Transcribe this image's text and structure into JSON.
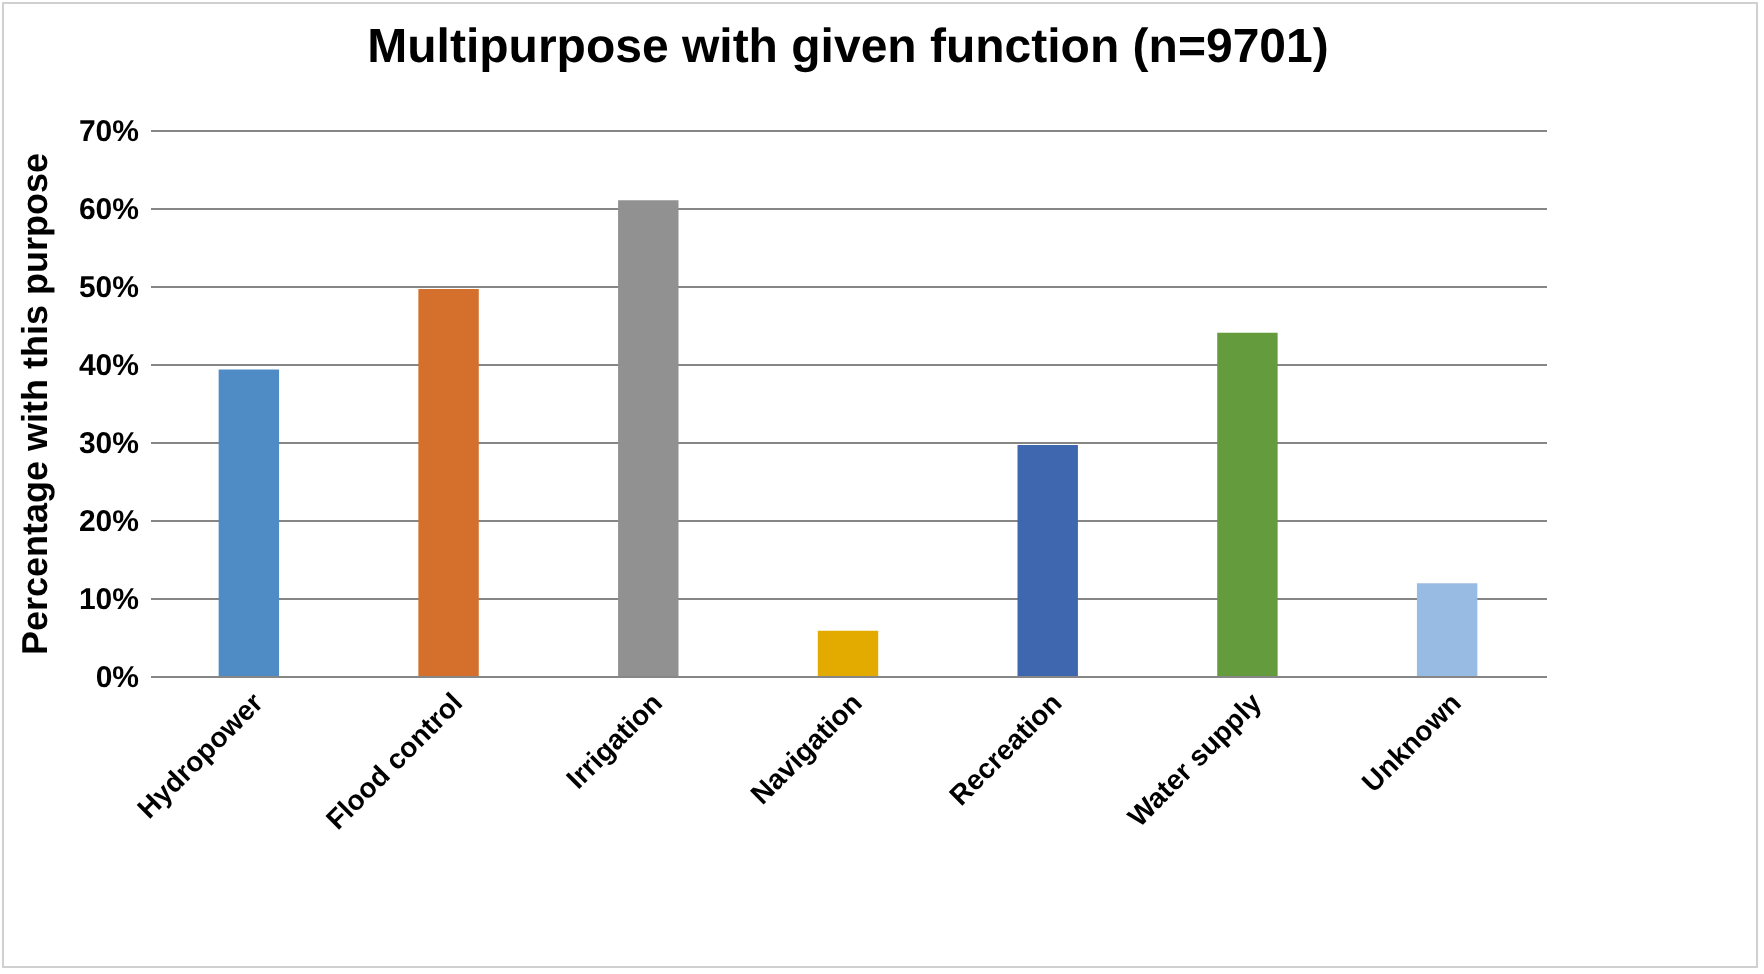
{
  "chart_data": {
    "type": "bar",
    "title": "Multipurpose with given function (n=9701)",
    "ylabel": "Percentage with this purpose",
    "categories": [
      "Hydropower",
      "Flood control",
      "Irrigation",
      "Navigation",
      "Recreation",
      "Water supply",
      "Unknown"
    ],
    "values": [
      39.3,
      49.6,
      61,
      5.8,
      29.6,
      44,
      11.9
    ],
    "colors": [
      "#4f8bc4",
      "#d4702b",
      "#919191",
      "#e3aa00",
      "#3e67b0",
      "#649b3d",
      "#98bbe3"
    ],
    "ylim": [
      0,
      70
    ],
    "yticks": [
      {
        "value": 0,
        "label": "0%"
      },
      {
        "value": 10,
        "label": "10%"
      },
      {
        "value": 20,
        "label": "20%"
      },
      {
        "value": 30,
        "label": "30%"
      },
      {
        "value": 40,
        "label": "40%"
      },
      {
        "value": 50,
        "label": "50%"
      },
      {
        "value": 60,
        "label": "60%"
      },
      {
        "value": 70,
        "label": "70%"
      }
    ],
    "grid": true
  }
}
